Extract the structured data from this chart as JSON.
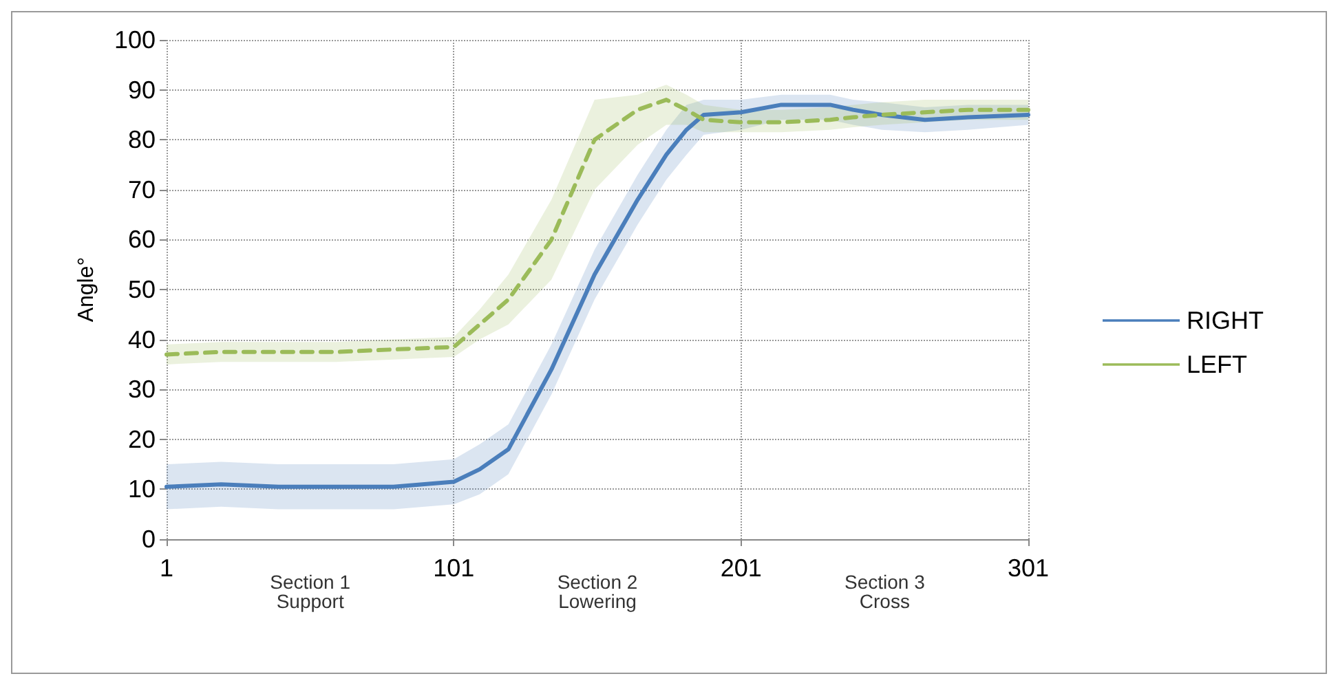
{
  "chart_data": {
    "type": "line",
    "ylabel": "Angle°",
    "x": [
      1,
      20,
      40,
      60,
      80,
      101,
      110,
      120,
      135,
      150,
      165,
      175,
      182,
      188,
      201,
      215,
      232,
      240,
      250,
      265,
      280,
      301
    ],
    "series": [
      {
        "name": "RIGHT",
        "color": "#4a7ebb",
        "line_style": "solid",
        "values": [
          10.5,
          11,
          10.5,
          10.5,
          10.5,
          11.5,
          14,
          18,
          34,
          53,
          68,
          77,
          82,
          85,
          85.5,
          87,
          87,
          86,
          85,
          84,
          84.5,
          85
        ],
        "lower": [
          6,
          6.5,
          6,
          6,
          6,
          7,
          9,
          13,
          29,
          48,
          63,
          72,
          77,
          81,
          82,
          84,
          84,
          83,
          82,
          81.5,
          82,
          83
        ],
        "upper": [
          15,
          15.5,
          15,
          15,
          15,
          16,
          19,
          23,
          39,
          58,
          73,
          82,
          87,
          88,
          88,
          89,
          89,
          88,
          87.5,
          86.5,
          87,
          87
        ]
      },
      {
        "name": "LEFT",
        "color": "#9bbb59",
        "line_style": "dashed",
        "values": [
          37,
          37.5,
          37.5,
          37.5,
          38,
          38.5,
          43,
          48,
          60,
          80,
          86,
          88,
          86,
          84,
          83.5,
          83.5,
          84,
          84.5,
          85,
          85.5,
          86,
          86
        ],
        "lower": [
          35,
          35.5,
          35.5,
          35.5,
          36,
          36.5,
          40,
          43,
          52,
          70,
          79,
          83,
          83,
          81.5,
          81.5,
          81.5,
          82,
          82.5,
          83,
          83.5,
          84,
          84
        ],
        "upper": [
          39,
          39.5,
          39.5,
          39.5,
          40,
          40.5,
          46,
          53,
          68,
          88,
          89,
          91,
          89,
          87,
          86,
          86,
          86.5,
          87,
          87.5,
          88,
          88,
          88
        ]
      }
    ],
    "xlim": [
      1,
      301
    ],
    "xticks": [
      1,
      101,
      201,
      301
    ],
    "ylim": [
      0,
      100
    ],
    "yticks": [
      0,
      10,
      20,
      30,
      40,
      50,
      60,
      70,
      80,
      90,
      100
    ],
    "annotations": [
      "Section 1\nSupport",
      "Section 2\nLowering",
      "Section 3\nCross"
    ],
    "grid": true,
    "legend": "right",
    "marker": "none"
  }
}
